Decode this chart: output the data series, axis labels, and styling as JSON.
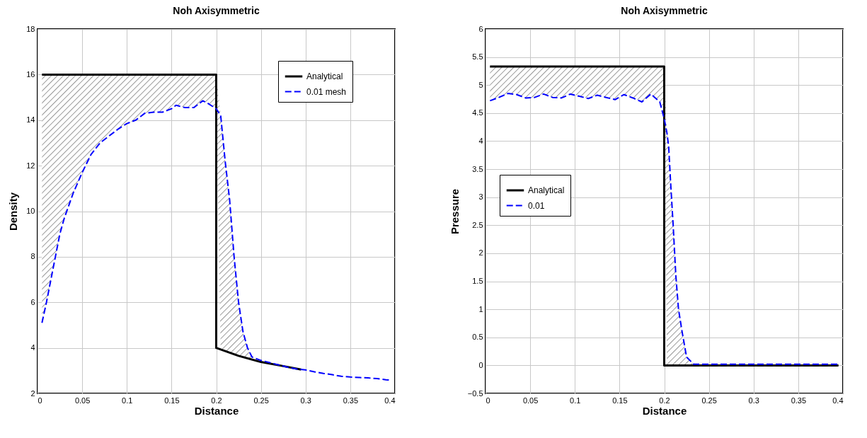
{
  "chart_data": [
    {
      "type": "line",
      "title": "Noh Axisymmetric",
      "xlabel": "Distance",
      "ylabel": "Density",
      "xlim": [
        0,
        0.4
      ],
      "xticks": [
        0,
        0.05,
        0.1,
        0.15,
        0.2,
        0.25,
        0.3,
        0.35,
        0.4
      ],
      "ylim": [
        2,
        18
      ],
      "yticks": [
        2,
        4,
        6,
        8,
        10,
        12,
        14,
        16,
        18
      ],
      "grid": true,
      "legend": "top right",
      "series": [
        {
          "name": "Analytical",
          "color": "#000000",
          "line_style": "solid",
          "x": [
            0.005,
            0.2,
            0.2,
            0.225,
            0.25,
            0.275,
            0.295
          ],
          "values": [
            16,
            16,
            4,
            3.65,
            3.38,
            3.2,
            3.05
          ]
        },
        {
          "name": "0.01 mesh",
          "color": "#0000ff",
          "line_style": "dashed",
          "x": [
            0.005,
            0.01,
            0.015,
            0.02,
            0.025,
            0.03,
            0.04,
            0.05,
            0.06,
            0.07,
            0.08,
            0.09,
            0.1,
            0.11,
            0.12,
            0.13,
            0.14,
            0.15,
            0.155,
            0.165,
            0.175,
            0.185,
            0.19,
            0.2,
            0.205,
            0.21,
            0.215,
            0.22,
            0.225,
            0.23,
            0.235,
            0.24,
            0.25,
            0.26,
            0.27,
            0.28,
            0.29,
            0.3,
            0.31,
            0.32,
            0.33,
            0.34,
            0.35,
            0.36,
            0.37,
            0.38,
            0.39,
            0.395
          ],
          "values": [
            5.1,
            6,
            7,
            8,
            9,
            9.7,
            10.8,
            11.7,
            12.5,
            13,
            13.3,
            13.6,
            13.85,
            14,
            14.3,
            14.35,
            14.35,
            14.5,
            14.65,
            14.55,
            14.55,
            14.85,
            14.75,
            14.5,
            14.2,
            12.2,
            10.5,
            8,
            6,
            4.7,
            4,
            3.6,
            3.45,
            3.35,
            3.25,
            3.15,
            3.07,
            3.03,
            2.95,
            2.88,
            2.82,
            2.75,
            2.72,
            2.7,
            2.68,
            2.65,
            2.6,
            2.58
          ],
          "lower": [
            5.1,
            6,
            7,
            8,
            9,
            9.7,
            10.8,
            11.7,
            12.5,
            13,
            13.3,
            13.6,
            13.85,
            14,
            14.3,
            14.35,
            14.35,
            14.5,
            14.65,
            14.55,
            14.55,
            14.85,
            14.75,
            14.5,
            3.92,
            3.85,
            3.78,
            3.72,
            3.65,
            3.6,
            3.55,
            3.5,
            null,
            null,
            null,
            null,
            null,
            null,
            null,
            null,
            null,
            null,
            null,
            null,
            null,
            null,
            null,
            null
          ],
          "upper": [
            16,
            16,
            16,
            16,
            16,
            16,
            16,
            16,
            16,
            16,
            16,
            16,
            16,
            16,
            16,
            16,
            16,
            16,
            16,
            16,
            16,
            16,
            16,
            16,
            14.2,
            12.2,
            10.5,
            8,
            6,
            4.7,
            4,
            3.6,
            null,
            null,
            null,
            null,
            null,
            null,
            null,
            null,
            null,
            null,
            null,
            null,
            null,
            null,
            null,
            null
          ]
        }
      ]
    },
    {
      "type": "line",
      "title": "Noh Axisymmetric",
      "xlabel": "Distance",
      "ylabel": "Pressure",
      "xlim": [
        0,
        0.4
      ],
      "xticks": [
        0,
        0.05,
        0.1,
        0.15,
        0.2,
        0.25,
        0.3,
        0.35,
        0.4
      ],
      "ylim": [
        -0.5,
        6
      ],
      "yticks": [
        -0.5,
        0,
        0.5,
        1,
        1.5,
        2,
        2.5,
        3,
        3.5,
        4,
        4.5,
        5,
        5.5,
        6
      ],
      "grid": true,
      "legend": "left",
      "series": [
        {
          "name": "Analytical",
          "color": "#000000",
          "line_style": "solid",
          "x": [
            0.005,
            0.2,
            0.2,
            0.395
          ],
          "values": [
            5.33,
            5.33,
            0,
            0
          ]
        },
        {
          "name": "0.01",
          "color": "#0000ff",
          "line_style": "dashed",
          "x": [
            0.005,
            0.015,
            0.025,
            0.035,
            0.045,
            0.055,
            0.065,
            0.075,
            0.085,
            0.095,
            0.105,
            0.115,
            0.125,
            0.135,
            0.145,
            0.155,
            0.165,
            0.175,
            0.185,
            0.195,
            0.2,
            0.203,
            0.205,
            0.207,
            0.21,
            0.213,
            0.216,
            0.22,
            0.225,
            0.233,
            0.25,
            0.3,
            0.35,
            0.395
          ],
          "values": [
            4.72,
            4.78,
            4.85,
            4.83,
            4.77,
            4.78,
            4.84,
            4.78,
            4.77,
            4.84,
            4.8,
            4.76,
            4.82,
            4.78,
            4.74,
            4.83,
            4.77,
            4.7,
            4.84,
            4.7,
            4.4,
            4.15,
            3.9,
            3.3,
            2.5,
            1.6,
            1,
            0.6,
            0.15,
            0.02,
            0.02,
            0.02,
            0.02,
            0.02
          ],
          "lower": [
            4.72,
            4.78,
            4.85,
            4.83,
            4.77,
            4.78,
            4.84,
            4.78,
            4.77,
            4.84,
            4.8,
            4.76,
            4.82,
            4.78,
            4.74,
            4.83,
            4.77,
            4.7,
            4.84,
            4.7,
            4.4,
            0,
            0,
            0,
            0,
            0,
            0,
            0,
            0,
            0,
            null,
            null,
            null,
            null
          ],
          "upper": [
            5.33,
            5.33,
            5.33,
            5.33,
            5.33,
            5.33,
            5.33,
            5.33,
            5.33,
            5.33,
            5.33,
            5.33,
            5.33,
            5.33,
            5.33,
            5.33,
            5.33,
            5.33,
            5.33,
            5.33,
            5.33,
            4.15,
            3.9,
            3.3,
            2.5,
            1.6,
            1,
            0.6,
            0.15,
            0.02,
            null,
            null,
            null,
            null
          ]
        }
      ]
    }
  ]
}
